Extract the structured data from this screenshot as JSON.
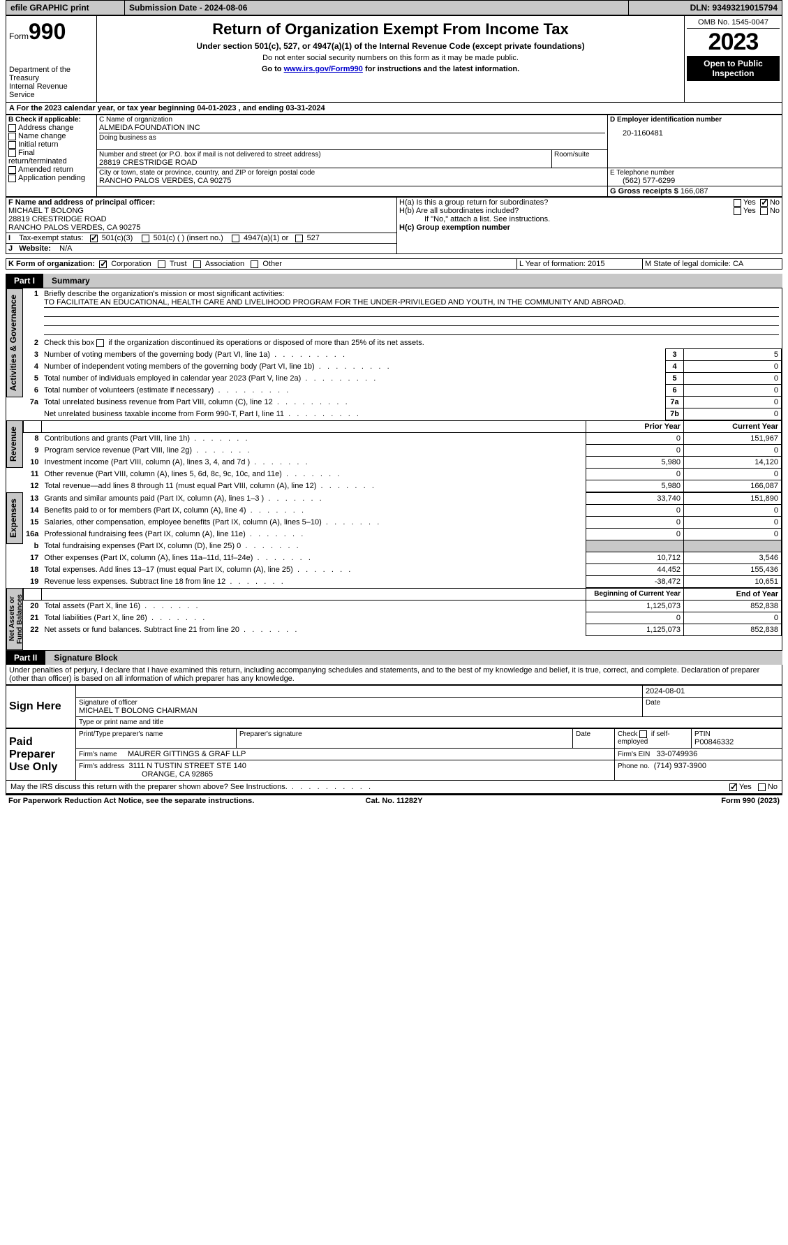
{
  "topbar": {
    "efile": "efile GRAPHIC print",
    "submission": "Submission Date - 2024-08-06",
    "dln": "DLN: 93493219015794"
  },
  "header": {
    "form_word": "Form",
    "form_num": "990",
    "dept": "Department of the Treasury\nInternal Revenue Service",
    "title": "Return of Organization Exempt From Income Tax",
    "subtitle": "Under section 501(c), 527, or 4947(a)(1) of the Internal Revenue Code (except private foundations)",
    "note1": "Do not enter social security numbers on this form as it may be made public.",
    "note2_prefix": "Go to ",
    "note2_link": "www.irs.gov/Form990",
    "note2_suffix": " for instructions and the latest information.",
    "omb": "OMB No. 1545-0047",
    "year": "2023",
    "open": "Open to Public Inspection"
  },
  "sectionA": {
    "line": "A For the 2023 calendar year, or tax year beginning 04-01-2023    , and ending 03-31-2024"
  },
  "sectionB": {
    "label": "B Check if applicable:",
    "opts": [
      "Address change",
      "Name change",
      "Initial return",
      "Final return/terminated",
      "Amended return",
      "Application pending"
    ]
  },
  "sectionC": {
    "name_label": "C Name of organization",
    "name": "ALMEIDA FOUNDATION INC",
    "dba": "Doing business as",
    "addr_label": "Number and street (or P.O. box if mail is not delivered to street address)",
    "room_label": "Room/suite",
    "addr": "28819 CRESTRIDGE ROAD",
    "city_label": "City or town, state or province, country, and ZIP or foreign postal code",
    "city": "RANCHO PALOS VERDES, CA   90275"
  },
  "sectionD": {
    "label": "D Employer identification number",
    "value": "20-1160481"
  },
  "sectionE": {
    "label": "E Telephone number",
    "value": "(562) 577-6299"
  },
  "sectionG": {
    "label": "G Gross receipts $",
    "value": "166,087"
  },
  "sectionF": {
    "label": "F Name and address of principal officer:",
    "line1": "MICHAEL T BOLONG",
    "line2": "28819 CRESTRIDGE ROAD",
    "line3": "RANCHO PALOS VERDES, CA   90275"
  },
  "sectionH": {
    "a": "H(a)  Is this a group return for subordinates?",
    "b": "H(b)  Are all subordinates included?",
    "b_note": "If \"No,\" attach a list. See instructions.",
    "c": "H(c)  Group exemption number",
    "yes": "Yes",
    "no": "No"
  },
  "sectionI": {
    "label": "I",
    "text": "Tax-exempt status:",
    "c3": "501(c)(3)",
    "c": "501(c) (  ) (insert no.)",
    "a1": "4947(a)(1) or",
    "527": "527"
  },
  "sectionJ": {
    "label": "J",
    "text": "Website:",
    "value": "N/A"
  },
  "sectionK": {
    "label": "K Form of organization:",
    "corp": "Corporation",
    "trust": "Trust",
    "assoc": "Association",
    "other": "Other"
  },
  "sectionL": {
    "text": "L Year of formation: 2015"
  },
  "sectionM": {
    "text": "M State of legal domicile: CA"
  },
  "part1": {
    "num": "Part I",
    "title": "Summary"
  },
  "summary": {
    "l1_label": "Briefly describe the organization's mission or most significant activities:",
    "l1_text": "TO FACILITATE AN EDUCATIONAL, HEALTH CARE AND LIVELIHOOD PROGRAM FOR THE UNDER-PRIVILEGED AND YOUTH, IN THE COMMUNITY AND ABROAD.",
    "l2": "Check this box      if the organization discontinued its operations or disposed of more than 25% of its net assets.",
    "vlabels": {
      "ag": "Activities & Governance",
      "rev": "Revenue",
      "exp": "Expenses",
      "na": "Net Assets or\nFund Balances"
    },
    "lines_ag": [
      {
        "n": "3",
        "t": "Number of voting members of the governing body (Part VI, line 1a)",
        "k": "3",
        "v": "5"
      },
      {
        "n": "4",
        "t": "Number of independent voting members of the governing body (Part VI, line 1b)",
        "k": "4",
        "v": "0"
      },
      {
        "n": "5",
        "t": "Total number of individuals employed in calendar year 2023 (Part V, line 2a)",
        "k": "5",
        "v": "0"
      },
      {
        "n": "6",
        "t": "Total number of volunteers (estimate if necessary)",
        "k": "6",
        "v": "0"
      },
      {
        "n": "7a",
        "t": "Total unrelated business revenue from Part VIII, column (C), line 12",
        "k": "7a",
        "v": "0"
      },
      {
        "n": "",
        "t": "Net unrelated business taxable income from Form 990-T, Part I, line 11",
        "k": "7b",
        "v": "0"
      }
    ],
    "col_headers": {
      "prior": "Prior Year",
      "current": "Current Year",
      "begin": "Beginning of Current Year",
      "end": "End of Year"
    },
    "lines_rev": [
      {
        "n": "8",
        "t": "Contributions and grants (Part VIII, line 1h)",
        "p": "0",
        "c": "151,967"
      },
      {
        "n": "9",
        "t": "Program service revenue (Part VIII, line 2g)",
        "p": "0",
        "c": "0"
      },
      {
        "n": "10",
        "t": "Investment income (Part VIII, column (A), lines 3, 4, and 7d )",
        "p": "5,980",
        "c": "14,120"
      },
      {
        "n": "11",
        "t": "Other revenue (Part VIII, column (A), lines 5, 6d, 8c, 9c, 10c, and 11e)",
        "p": "0",
        "c": "0"
      },
      {
        "n": "12",
        "t": "Total revenue—add lines 8 through 11 (must equal Part VIII, column (A), line 12)",
        "p": "5,980",
        "c": "166,087"
      }
    ],
    "lines_exp": [
      {
        "n": "13",
        "t": "Grants and similar amounts paid (Part IX, column (A), lines 1–3 )",
        "p": "33,740",
        "c": "151,890"
      },
      {
        "n": "14",
        "t": "Benefits paid to or for members (Part IX, column (A), line 4)",
        "p": "0",
        "c": "0"
      },
      {
        "n": "15",
        "t": "Salaries, other compensation, employee benefits (Part IX, column (A), lines 5–10)",
        "p": "0",
        "c": "0"
      },
      {
        "n": "16a",
        "t": "Professional fundraising fees (Part IX, column (A), line 11e)",
        "p": "0",
        "c": "0"
      },
      {
        "n": "b",
        "t": "Total fundraising expenses (Part IX, column (D), line 25) 0",
        "p": "grey",
        "c": "grey"
      },
      {
        "n": "17",
        "t": "Other expenses (Part IX, column (A), lines 11a–11d, 11f–24e)",
        "p": "10,712",
        "c": "3,546"
      },
      {
        "n": "18",
        "t": "Total expenses. Add lines 13–17 (must equal Part IX, column (A), line 25)",
        "p": "44,452",
        "c": "155,436"
      },
      {
        "n": "19",
        "t": "Revenue less expenses. Subtract line 18 from line 12",
        "p": "-38,472",
        "c": "10,651"
      }
    ],
    "lines_na": [
      {
        "n": "20",
        "t": "Total assets (Part X, line 16)",
        "p": "1,125,073",
        "c": "852,838"
      },
      {
        "n": "21",
        "t": "Total liabilities (Part X, line 26)",
        "p": "0",
        "c": "0"
      },
      {
        "n": "22",
        "t": "Net assets or fund balances. Subtract line 21 from line 20",
        "p": "1,125,073",
        "c": "852,838"
      }
    ]
  },
  "part2": {
    "num": "Part II",
    "title": "Signature Block"
  },
  "perjury": "Under penalties of perjury, I declare that I have examined this return, including accompanying schedules and statements, and to the best of my knowledge and belief, it is true, correct, and complete. Declaration of preparer (other than officer) is based on all information of which preparer has any knowledge.",
  "sign": {
    "here": "Sign Here",
    "sig_officer": "Signature of officer",
    "officer_name": "MICHAEL T BOLONG  CHAIRMAN",
    "type_name": "Type or print name and title",
    "date_label": "Date",
    "date": "2024-08-01"
  },
  "paid": {
    "label": "Paid Preparer Use Only",
    "print_name": "Print/Type preparer's name",
    "prep_sig": "Preparer's signature",
    "date": "Date",
    "check_if": "Check          if self-employed",
    "ptin_label": "PTIN",
    "ptin": "P00846332",
    "firm_name_l": "Firm's name",
    "firm_name": "MAURER GITTINGS & GRAF LLP",
    "firm_ein_l": "Firm's EIN",
    "firm_ein": "33-0749936",
    "firm_addr_l": "Firm's address",
    "firm_addr1": "3111 N TUSTIN STREET STE 140",
    "firm_addr2": "ORANGE, CA  92865",
    "phone_l": "Phone no.",
    "phone": "(714) 937-3900"
  },
  "discuss": {
    "q": "May the IRS discuss this return with the preparer shown above? See Instructions.",
    "yes": "Yes",
    "no": "No"
  },
  "footer": {
    "left": "For Paperwork Reduction Act Notice, see the separate instructions.",
    "mid": "Cat. No. 11282Y",
    "right": "Form 990 (2023)"
  }
}
